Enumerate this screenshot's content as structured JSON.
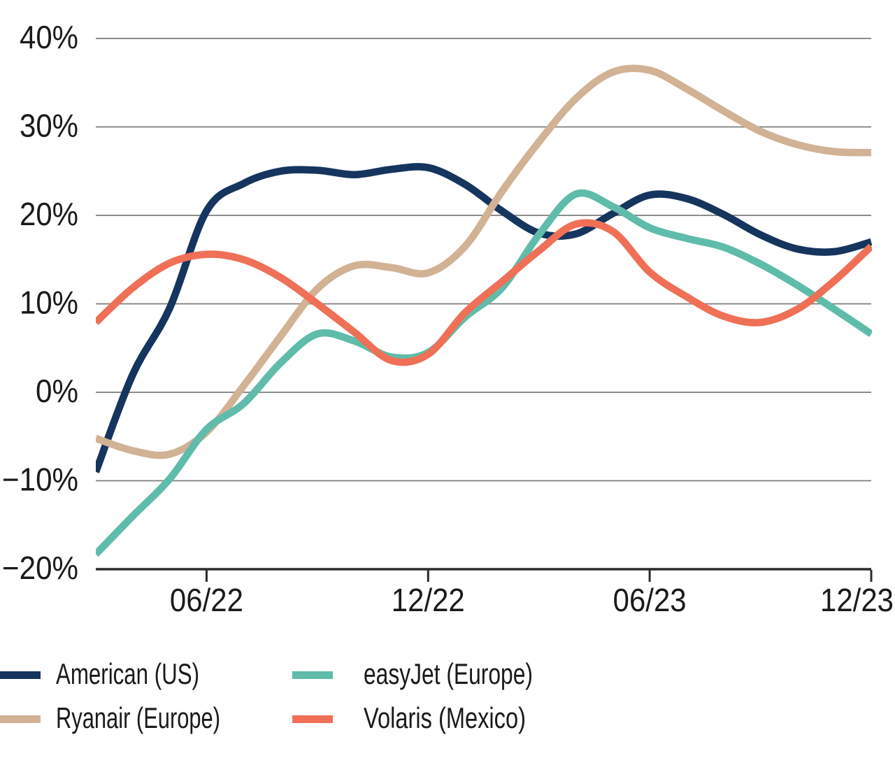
{
  "chart_data": {
    "type": "line",
    "title": "",
    "subtitle": "",
    "xlabel": "",
    "ylabel": "",
    "x_unit": "month",
    "x": [
      "03/22",
      "04/22",
      "05/22",
      "06/22",
      "07/22",
      "08/22",
      "09/22",
      "10/22",
      "11/22",
      "12/22",
      "01/23",
      "02/23",
      "03/23",
      "04/23",
      "05/23",
      "06/23",
      "07/23",
      "08/23",
      "09/23",
      "10/23",
      "11/23",
      "12/23"
    ],
    "x_ticks": [
      {
        "index": 3,
        "label": "06/22"
      },
      {
        "index": 9,
        "label": "12/22"
      },
      {
        "index": 15,
        "label": "06/23"
      },
      {
        "index": 21,
        "label": "12/23"
      }
    ],
    "y_ticks": [
      {
        "value": 40,
        "label": "40%"
      },
      {
        "value": 30,
        "label": "30%"
      },
      {
        "value": 20,
        "label": "20%"
      },
      {
        "value": 10,
        "label": "10%"
      },
      {
        "value": 0,
        "label": "0%"
      },
      {
        "value": -10,
        "label": "−10%"
      },
      {
        "value": -20,
        "label": "−20%"
      }
    ],
    "ylim": [
      -20,
      40
    ],
    "y_format": "percent",
    "grid": "horizontal",
    "legend_position": "bottom",
    "series": [
      {
        "name": "American (US)",
        "color": "#15355e",
        "values": [
          -9,
          2,
          9.5,
          20.5,
          23.6,
          25,
          25.1,
          24.6,
          25.2,
          25.4,
          23.5,
          20.5,
          18,
          17.9,
          20.2,
          22.3,
          21.9,
          20.1,
          17.8,
          16.2,
          15.9,
          17
        ]
      },
      {
        "name": "Ryanair (Europe)",
        "color": "#d2b294",
        "values": [
          -5.2,
          -6.6,
          -7,
          -4.5,
          0.7,
          6.3,
          11.7,
          14.3,
          14.1,
          13.5,
          16.5,
          22.7,
          28.3,
          33.2,
          36.2,
          36.4,
          34.3,
          31.8,
          29.5,
          28,
          27.2,
          27.1
        ]
      },
      {
        "name": "easyJet (Europe)",
        "color": "#5fbcab",
        "values": [
          -18.3,
          -14,
          -9.8,
          -4.2,
          -1.3,
          3.3,
          6.6,
          5.8,
          4.0,
          4.5,
          8.5,
          11.8,
          17.8,
          22.4,
          21,
          18.6,
          17.4,
          16.4,
          14.5,
          12.1,
          9.4,
          6.6
        ]
      },
      {
        "name": "Volaris (Mexico)",
        "color": "#ef7056",
        "values": [
          7.9,
          11.8,
          14.6,
          15.6,
          15,
          13,
          10,
          6.8,
          3.6,
          4.3,
          9,
          12.5,
          16,
          19,
          18.2,
          13.6,
          10.8,
          8.6,
          7.9,
          9.4,
          12.6,
          16.5
        ]
      }
    ]
  },
  "colors": {
    "background": "#ffffff",
    "gridline": "#7c7c7c",
    "axis": "#2b2b2b",
    "text": "#1a1a1a"
  }
}
